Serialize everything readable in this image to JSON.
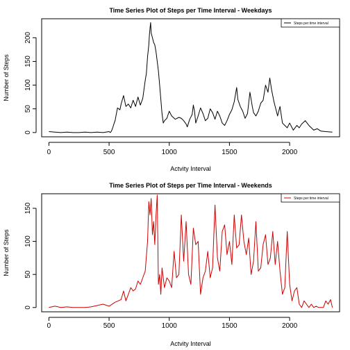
{
  "chart_data": [
    {
      "type": "line",
      "title": "Time Series Plot of Steps per Time Interval - Weekdays",
      "xlabel": "Actvity Interval",
      "ylabel": "Number of Steps",
      "xlim": [
        -60,
        2415
      ],
      "ylim": [
        -9,
        240
      ],
      "xticks": [
        0,
        500,
        1000,
        1500,
        2000
      ],
      "yticks": [
        0,
        50,
        100,
        150,
        200
      ],
      "legend_position": "top-right",
      "series": [
        {
          "name": "Steps per time interval",
          "color": "#000000",
          "x": [
            0,
            50,
            100,
            150,
            200,
            250,
            300,
            350,
            400,
            450,
            500,
            510,
            520,
            530,
            540,
            550,
            570,
            590,
            600,
            620,
            640,
            660,
            680,
            700,
            720,
            740,
            760,
            780,
            800,
            810,
            820,
            830,
            835,
            840,
            845,
            850,
            860,
            870,
            880,
            890,
            900,
            910,
            920,
            930,
            940,
            950,
            960,
            980,
            1000,
            1020,
            1050,
            1080,
            1100,
            1120,
            1140,
            1150,
            1170,
            1190,
            1200,
            1210,
            1220,
            1240,
            1260,
            1280,
            1300,
            1320,
            1340,
            1360,
            1380,
            1400,
            1420,
            1440,
            1460,
            1480,
            1500,
            1520,
            1540,
            1560,
            1570,
            1590,
            1610,
            1630,
            1650,
            1670,
            1690,
            1700,
            1720,
            1740,
            1760,
            1780,
            1800,
            1820,
            1835,
            1850,
            1870,
            1890,
            1900,
            1920,
            1940,
            1960,
            1980,
            2000,
            2030,
            2060,
            2080,
            2100,
            2130,
            2160,
            2200,
            2230,
            2260,
            2300,
            2355
          ],
          "y": [
            2,
            1,
            0,
            1,
            0,
            0,
            1,
            0,
            1,
            0,
            2,
            0,
            3,
            10,
            18,
            25,
            52,
            48,
            60,
            78,
            55,
            60,
            52,
            68,
            55,
            75,
            58,
            72,
            110,
            125,
            160,
            185,
            205,
            220,
            232,
            210,
            200,
            190,
            185,
            170,
            150,
            130,
            100,
            70,
            40,
            20,
            25,
            30,
            45,
            35,
            28,
            32,
            30,
            25,
            18,
            12,
            28,
            38,
            58,
            45,
            20,
            35,
            52,
            40,
            25,
            30,
            50,
            42,
            28,
            45,
            35,
            20,
            15,
            25,
            38,
            48,
            65,
            95,
            70,
            55,
            45,
            30,
            40,
            85,
            55,
            42,
            35,
            45,
            62,
            68,
            100,
            85,
            115,
            90,
            65,
            45,
            35,
            55,
            20,
            15,
            10,
            20,
            5,
            15,
            10,
            18,
            25,
            15,
            5,
            8,
            3,
            2,
            1
          ]
        }
      ]
    },
    {
      "type": "line",
      "title": "Time Series Plot of Steps per Time Interval - Weekends",
      "xlabel": "Actvity Interval",
      "ylabel": "Number of Steps",
      "xlim": [
        -60,
        2415
      ],
      "ylim": [
        -6.5,
        172
      ],
      "xticks": [
        0,
        500,
        1000,
        1500,
        2000
      ],
      "yticks": [
        0,
        50,
        100,
        150
      ],
      "legend_position": "top-right",
      "series": [
        {
          "name": "Steps per time interval",
          "color": "#cc0000",
          "x": [
            0,
            50,
            100,
            150,
            200,
            250,
            300,
            350,
            400,
            450,
            500,
            550,
            600,
            620,
            640,
            660,
            680,
            700,
            720,
            740,
            760,
            780,
            800,
            820,
            830,
            840,
            850,
            860,
            870,
            880,
            890,
            900,
            910,
            920,
            930,
            940,
            960,
            980,
            1000,
            1020,
            1040,
            1060,
            1080,
            1100,
            1120,
            1140,
            1160,
            1180,
            1200,
            1220,
            1240,
            1260,
            1280,
            1300,
            1320,
            1340,
            1360,
            1380,
            1400,
            1420,
            1440,
            1460,
            1480,
            1500,
            1520,
            1540,
            1560,
            1580,
            1600,
            1620,
            1640,
            1660,
            1680,
            1700,
            1720,
            1740,
            1760,
            1780,
            1800,
            1820,
            1840,
            1860,
            1880,
            1900,
            1920,
            1940,
            1960,
            1980,
            2000,
            2020,
            2040,
            2060,
            2080,
            2100,
            2120,
            2140,
            2160,
            2180,
            2200,
            2220,
            2240,
            2260,
            2280,
            2300,
            2320,
            2340,
            2355
          ],
          "y": [
            0,
            2,
            0,
            1,
            0,
            0,
            0,
            1,
            3,
            5,
            2,
            8,
            12,
            25,
            10,
            20,
            30,
            25,
            28,
            40,
            35,
            45,
            55,
            100,
            160,
            140,
            165,
            110,
            130,
            95,
            140,
            170,
            35,
            50,
            20,
            60,
            30,
            45,
            40,
            30,
            85,
            45,
            50,
            140,
            70,
            130,
            50,
            35,
            120,
            95,
            100,
            20,
            45,
            55,
            85,
            45,
            60,
            155,
            75,
            55,
            115,
            125,
            80,
            100,
            65,
            140,
            90,
            95,
            140,
            100,
            80,
            105,
            50,
            70,
            130,
            55,
            60,
            95,
            110,
            65,
            75,
            115,
            65,
            100,
            55,
            20,
            30,
            115,
            35,
            10,
            25,
            30,
            5,
            0,
            10,
            5,
            0,
            5,
            0,
            2,
            0,
            0,
            0,
            10,
            5,
            12,
            0
          ]
        }
      ]
    }
  ]
}
